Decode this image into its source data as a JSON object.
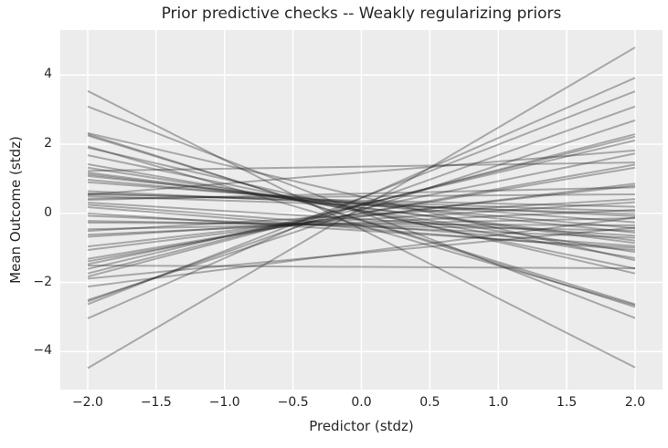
{
  "chart_data": {
    "type": "line",
    "title": "Prior predictive checks -- Weakly regularizing priors",
    "xlabel": "Predictor (stdz)",
    "ylabel": "Mean Outcome (stdz)",
    "xlim": [
      -2.2,
      2.2
    ],
    "ylim": [
      -5.1,
      5.3
    ],
    "x_ticks": [
      -2.0,
      -1.5,
      -1.0,
      -0.5,
      0.0,
      0.5,
      1.0,
      1.5,
      2.0
    ],
    "x_tick_labels": [
      "−2.0",
      "−1.5",
      "−1.0",
      "−0.5",
      "0.0",
      "0.5",
      "1.0",
      "1.5",
      "2.0"
    ],
    "y_ticks": [
      -4,
      -2,
      0,
      2,
      4
    ],
    "y_tick_labels": [
      "−4",
      "−2",
      "0",
      "2",
      "4"
    ],
    "grid": true,
    "legend": false,
    "style": {
      "plot_background": "#ECECEC",
      "grid_color": "#FFFFFF",
      "grid_width": 1.5,
      "line_color": "#222222",
      "line_opacity": 0.34,
      "line_width": 2,
      "text_color": "#262626"
    },
    "line_model": "y = intercept + slope * x, each line drawn over x in [-2, 2]",
    "x_line_span": [
      -2,
      2
    ],
    "n_lines": 50,
    "lines": [
      [
        0.16,
        2.32
      ],
      [
        -0.46,
        -2.0
      ],
      [
        0.44,
        1.74
      ],
      [
        0.03,
        -1.53
      ],
      [
        0.45,
        1.54
      ],
      [
        -0.21,
        -1.25
      ],
      [
        0.27,
        1.41
      ],
      [
        -0.19,
        -1.22
      ],
      [
        0.09,
        1.3
      ],
      [
        -0.36,
        -1.15
      ],
      [
        0.23,
        1.03
      ],
      [
        0.08,
        -0.91
      ],
      [
        0.24,
        0.99
      ],
      [
        0.04,
        -0.82
      ],
      [
        0.25,
        0.93
      ],
      [
        0.06,
        -0.68
      ],
      [
        0.13,
        0.8
      ],
      [
        0.1,
        -0.61
      ],
      [
        0.01,
        0.7
      ],
      [
        0.16,
        -0.51
      ],
      [
        0.0,
        0.66
      ],
      [
        0.17,
        -0.48
      ],
      [
        -1.12,
        0.5
      ],
      [
        0.26,
        -0.41
      ],
      [
        -0.1,
        0.48
      ],
      [
        0.27,
        -0.35
      ],
      [
        -0.08,
        0.44
      ],
      [
        0.32,
        -0.29
      ],
      [
        -1.15,
        0.37
      ],
      [
        0.28,
        -0.18
      ],
      [
        1.18,
        0.32
      ],
      [
        0.32,
        -0.13
      ],
      [
        -0.18,
        0.25
      ],
      [
        0.37,
        -0.09
      ],
      [
        -0.26,
        0.18
      ],
      [
        0.24,
        -0.13
      ],
      [
        -0.05,
        0.23
      ],
      [
        1.35,
        0.06
      ],
      [
        -0.3,
        0.08
      ],
      [
        0.49,
        0.03
      ],
      [
        -0.31,
        -0.02
      ],
      [
        0.57,
        0.09
      ],
      [
        -0.36,
        -0.07
      ],
      [
        -0.17,
        -0.24
      ],
      [
        -0.39,
        -0.16
      ],
      [
        -0.35,
        -0.3
      ],
      [
        -0.5,
        -0.25
      ],
      [
        -0.44,
        -0.31
      ],
      [
        -1.55,
        -0.02
      ],
      [
        0.48,
        -0.92
      ]
    ]
  }
}
